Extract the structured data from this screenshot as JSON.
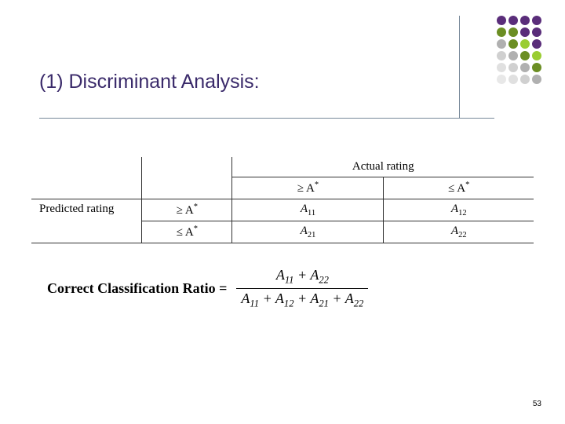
{
  "title": "(1)  Discriminant Analysis:",
  "decoration": {
    "colors": [
      [
        "#5a2d7a",
        "#5a2d7a",
        "#5a2d7a",
        "#5a2d7a"
      ],
      [
        "#6b8e23",
        "#6b8e23",
        "#5a2d7a",
        "#5a2d7a"
      ],
      [
        "#b0b0b0",
        "#6b8e23",
        "#9acd32",
        "#5a2d7a"
      ],
      [
        "#d0d0d0",
        "#b0b0b0",
        "#6b8e23",
        "#9acd32"
      ],
      [
        "#e0e0e0",
        "#d0d0d0",
        "#b0b0b0",
        "#6b8e23"
      ],
      [
        "#e8e8e8",
        "#e0e0e0",
        "#d0d0d0",
        "#b0b0b0"
      ]
    ]
  },
  "table": {
    "actual_rating_label": "Actual rating",
    "predicted_rating_label": "Predicted rating",
    "geq": "≥ A",
    "leq": "≤ A",
    "star": "*",
    "cells": {
      "A11": "A",
      "A12": "A",
      "A21": "A",
      "A22": "A"
    }
  },
  "formula": {
    "label": "Correct Classification Ratio =",
    "numerator_terms": [
      "A",
      "A"
    ],
    "numerator_subs": [
      "11",
      "22"
    ],
    "denominator_terms": [
      "A",
      "A",
      "A",
      "A"
    ],
    "denominator_subs": [
      "11",
      "12",
      "21",
      "22"
    ]
  },
  "page_number": "53"
}
